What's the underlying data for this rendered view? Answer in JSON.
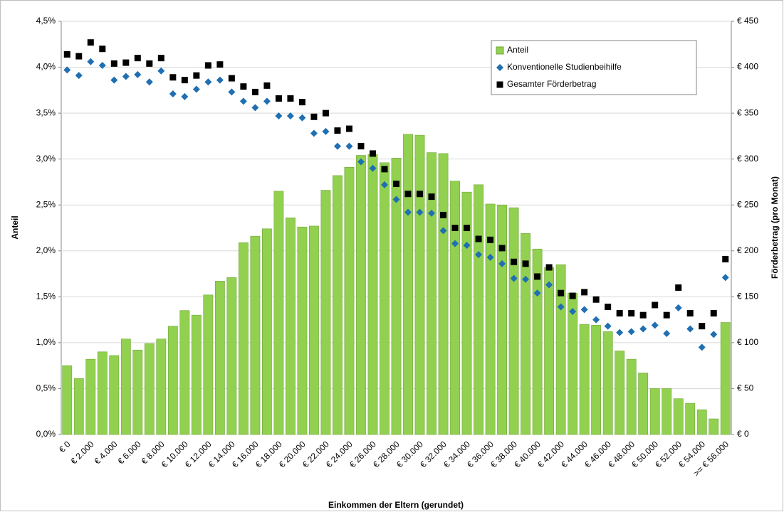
{
  "chart_data": {
    "type": "bar",
    "x_label": "Einkommen der Eltern (gerundet)",
    "y_label": "Anteil",
    "y2_label": "Förderbetrag (pro Monat)",
    "categories": [
      "€ 0",
      null,
      "€ 2.000",
      null,
      "€ 4.000",
      null,
      "€ 6.000",
      null,
      "€ 8.000",
      null,
      "€ 10.000",
      null,
      "€ 12.000",
      null,
      "€ 14.000",
      null,
      "€ 16.000",
      null,
      "€ 18.000",
      null,
      "€ 20.000",
      null,
      "€ 22.000",
      null,
      "€ 24.000",
      null,
      "€ 26.000",
      null,
      "€ 28.000",
      null,
      "€ 30.000",
      null,
      "€ 32.000",
      null,
      "€ 34.000",
      null,
      "€ 36.000",
      null,
      "€ 38.000",
      null,
      "€ 40.000",
      null,
      "€ 42.000",
      null,
      "€ 44.000",
      null,
      "€ 46.000",
      null,
      "€ 48.000",
      null,
      "€ 50.000",
      null,
      "€ 52.000",
      null,
      "€ 54.000",
      null,
      ">= € 56.000"
    ],
    "series": [
      {
        "name": "Anteil",
        "type": "bar",
        "axis": "y",
        "color": "#92d050",
        "values": [
          0.75,
          0.61,
          0.82,
          0.9,
          0.86,
          1.04,
          0.92,
          0.99,
          1.04,
          1.18,
          1.35,
          1.3,
          1.52,
          1.67,
          1.71,
          2.09,
          2.16,
          2.24,
          2.65,
          2.36,
          2.26,
          2.27,
          2.66,
          2.82,
          2.91,
          3.04,
          3.05,
          2.96,
          3.01,
          3.27,
          3.26,
          3.07,
          3.06,
          2.76,
          2.64,
          2.72,
          2.51,
          2.5,
          2.47,
          2.19,
          2.02,
          1.82,
          1.85,
          1.54,
          1.2,
          1.19,
          1.12,
          0.91,
          0.82,
          0.67,
          0.5,
          0.5,
          0.39,
          0.34,
          0.27,
          0.17,
          1.22
        ]
      },
      {
        "name": "Konventionelle Studienbeihilfe",
        "type": "scatter",
        "marker": "diamond",
        "axis": "y2",
        "color": "#1f6fb2",
        "values": [
          397,
          391,
          406,
          402,
          386,
          390,
          392,
          384,
          396,
          371,
          368,
          376,
          384,
          386,
          373,
          363,
          356,
          363,
          347,
          347,
          345,
          328,
          330,
          314,
          314,
          297,
          290,
          272,
          256,
          242,
          242,
          241,
          222,
          208,
          206,
          196,
          193,
          186,
          170,
          169,
          154,
          163,
          139,
          134,
          136,
          125,
          118,
          111,
          112,
          115,
          119,
          110,
          138,
          115,
          95,
          109,
          171
        ]
      },
      {
        "name": "Gesamter Förderbetrag",
        "type": "scatter",
        "marker": "square",
        "axis": "y2",
        "color": "#000000",
        "values": [
          414,
          412,
          427,
          420,
          404,
          405,
          410,
          404,
          410,
          389,
          386,
          391,
          402,
          403,
          388,
          379,
          373,
          380,
          366,
          366,
          362,
          346,
          350,
          331,
          333,
          314,
          306,
          289,
          273,
          262,
          262,
          259,
          239,
          225,
          225,
          213,
          212,
          203,
          188,
          186,
          172,
          182,
          154,
          151,
          155,
          147,
          139,
          132,
          132,
          130,
          141,
          130,
          160,
          132,
          118,
          132,
          191
        ]
      }
    ],
    "ylim": [
      0,
      4.5
    ],
    "yticks": [
      {
        "value": 0,
        "label": "0,0%"
      },
      {
        "value": 0.5,
        "label": "0,5%"
      },
      {
        "value": 1,
        "label": "1,0%"
      },
      {
        "value": 1.5,
        "label": "1,5%"
      },
      {
        "value": 2,
        "label": "2,0%"
      },
      {
        "value": 2.5,
        "label": "2,5%"
      },
      {
        "value": 3,
        "label": "3,0%"
      },
      {
        "value": 3.5,
        "label": "3,5%"
      },
      {
        "value": 4,
        "label": "4,0%"
      },
      {
        "value": 4.5,
        "label": "4,5%"
      }
    ],
    "y2lim": [
      0,
      450
    ],
    "y2ticks": [
      {
        "value": 0,
        "label": "€ 0"
      },
      {
        "value": 50,
        "label": "€ 50"
      },
      {
        "value": 100,
        "label": "€ 100"
      },
      {
        "value": 150,
        "label": "€ 150"
      },
      {
        "value": 200,
        "label": "€ 200"
      },
      {
        "value": 250,
        "label": "€ 250"
      },
      {
        "value": 300,
        "label": "€ 300"
      },
      {
        "value": 350,
        "label": "€ 350"
      },
      {
        "value": 400,
        "label": "€ 400"
      },
      {
        "value": 450,
        "label": "€ 450"
      }
    ],
    "grid": true,
    "legend": "top-right"
  }
}
